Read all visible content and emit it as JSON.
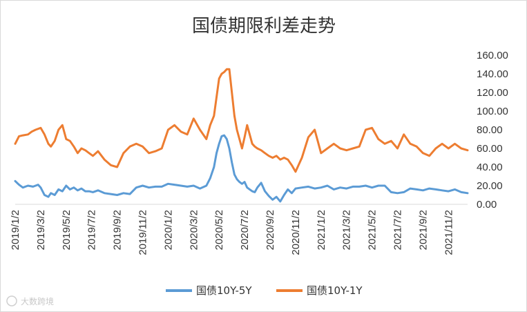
{
  "chart_data": {
    "type": "line",
    "title": "国债期限利差走势",
    "ylim": [
      0,
      160
    ],
    "yticks": [
      "0.00",
      "20.00",
      "40.00",
      "60.00",
      "80.00",
      "100.00",
      "120.00",
      "140.00",
      "160.00"
    ],
    "xticks": [
      "2019/1/2",
      "2019/3/2",
      "2019/5/2",
      "2019/7/2",
      "2019/9/2",
      "2019/11/2",
      "2020/1/2",
      "2020/3/2",
      "2020/5/2",
      "2020/7/2",
      "2020/9/2",
      "2020/11/2",
      "2021/1/2",
      "2021/3/2",
      "2021/5/2",
      "2021/7/2",
      "2021/9/2",
      "2021/11/2"
    ],
    "x_range_months": [
      0,
      35.5
    ],
    "legend_position": "bottom",
    "series": [
      {
        "name": "国债10Y-5Y",
        "color": "#5b9bd5",
        "x": [
          0,
          0.3,
          0.6,
          1,
          1.4,
          1.8,
          2,
          2.3,
          2.6,
          2.8,
          3.1,
          3.4,
          3.7,
          4,
          4.3,
          4.6,
          4.9,
          5.2,
          5.5,
          5.8,
          6.1,
          6.5,
          7,
          7.5,
          8,
          8.5,
          9,
          9.5,
          10,
          10.5,
          11,
          11.5,
          12,
          12.5,
          13,
          13.5,
          14,
          14.5,
          15,
          15.3,
          15.6,
          15.8,
          16,
          16.2,
          16.4,
          16.6,
          16.8,
          17,
          17.2,
          17.4,
          17.6,
          17.8,
          18,
          18.2,
          18.4,
          18.6,
          18.8,
          19,
          19.3,
          19.6,
          19.9,
          20.2,
          20.5,
          20.8,
          21.1,
          21.4,
          21.7,
          22,
          22.5,
          23,
          23.5,
          24,
          24.5,
          25,
          25.5,
          26,
          26.5,
          27,
          27.5,
          28,
          28.5,
          29,
          29.5,
          30,
          30.5,
          31,
          31.5,
          32,
          32.5,
          33,
          33.5,
          34,
          34.5,
          35,
          35.5
        ],
        "values": [
          25,
          21,
          18,
          20,
          19,
          21,
          18,
          10,
          8,
          12,
          10,
          16,
          14,
          20,
          16,
          18,
          15,
          17,
          14,
          14,
          13,
          15,
          12,
          11,
          10,
          12,
          11,
          18,
          20,
          18,
          19,
          19,
          22,
          21,
          20,
          19,
          20,
          17,
          20,
          28,
          40,
          55,
          65,
          73,
          74,
          70,
          60,
          45,
          32,
          27,
          24,
          22,
          24,
          18,
          16,
          14,
          13,
          18,
          23,
          14,
          9,
          5,
          8,
          3,
          10,
          16,
          12,
          17,
          18,
          19,
          17,
          18,
          20,
          16,
          18,
          17,
          19,
          19,
          20,
          18,
          20,
          20,
          13,
          12,
          13,
          17,
          16,
          15,
          17,
          16,
          15,
          14,
          16,
          13,
          12
        ]
      },
      {
        "name": "国债10Y-1Y",
        "color": "#ed7d31",
        "x": [
          0,
          0.3,
          0.6,
          1,
          1.3,
          1.6,
          2,
          2.3,
          2.6,
          2.8,
          3.1,
          3.4,
          3.7,
          4,
          4.3,
          4.6,
          4.9,
          5.2,
          5.5,
          5.8,
          6.1,
          6.5,
          7,
          7.5,
          8,
          8.5,
          9,
          9.5,
          10,
          10.5,
          11,
          11.5,
          12,
          12.5,
          13,
          13.5,
          14,
          14.5,
          15,
          15.3,
          15.6,
          15.8,
          16,
          16.2,
          16.4,
          16.6,
          16.8,
          17,
          17.2,
          17.4,
          17.6,
          17.8,
          18,
          18.2,
          18.4,
          18.6,
          18.8,
          19,
          19.3,
          19.6,
          19.9,
          20.2,
          20.5,
          20.8,
          21.1,
          21.4,
          21.7,
          22,
          22.5,
          23,
          23.5,
          24,
          24.5,
          25,
          25.5,
          26,
          26.5,
          27,
          27.5,
          28,
          28.5,
          29,
          29.5,
          30,
          30.5,
          31,
          31.5,
          32,
          32.5,
          33,
          33.5,
          34,
          34.5,
          35,
          35.5
        ],
        "values": [
          65,
          73,
          74,
          75,
          78,
          80,
          82,
          75,
          65,
          62,
          68,
          80,
          85,
          70,
          68,
          62,
          55,
          60,
          58,
          55,
          52,
          57,
          48,
          42,
          40,
          55,
          62,
          65,
          62,
          55,
          57,
          60,
          80,
          85,
          78,
          75,
          92,
          80,
          70,
          85,
          95,
          115,
          135,
          140,
          142,
          145,
          145,
          120,
          95,
          80,
          70,
          60,
          72,
          85,
          75,
          65,
          62,
          60,
          58,
          55,
          52,
          50,
          52,
          48,
          50,
          48,
          42,
          35,
          50,
          72,
          80,
          55,
          60,
          65,
          60,
          58,
          60,
          62,
          80,
          82,
          70,
          65,
          68,
          60,
          75,
          65,
          62,
          55,
          52,
          60,
          65,
          60,
          65,
          60,
          58
        ]
      }
    ]
  },
  "watermark": "大数跨境"
}
